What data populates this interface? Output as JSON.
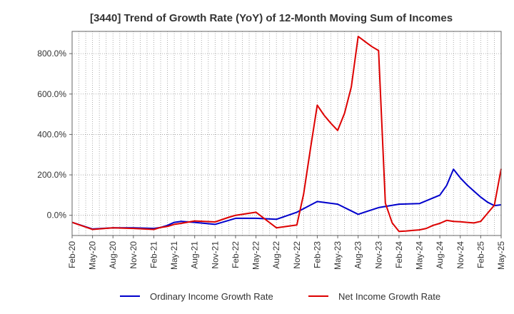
{
  "chart_data": {
    "type": "line",
    "title": "[3440]  Trend of Growth Rate (YoY) of 12-Month Moving Sum of Incomes",
    "xlabel": "",
    "ylabel": "",
    "x_tick_labels": [
      "Feb-20",
      "May-20",
      "Aug-20",
      "Nov-20",
      "Feb-21",
      "May-21",
      "Aug-21",
      "Nov-21",
      "Feb-22",
      "May-22",
      "Aug-22",
      "Nov-22",
      "Feb-23",
      "May-23",
      "Aug-23",
      "Nov-23",
      "Feb-24",
      "May-24",
      "Aug-24",
      "Nov-24",
      "Feb-25",
      "May-25"
    ],
    "y_ticks": [
      0,
      200,
      400,
      600,
      800
    ],
    "y_tick_labels": [
      "0.0%",
      "200.0%",
      "400.0%",
      "600.0%",
      "800.0%"
    ],
    "ylim": [
      -100,
      910
    ],
    "x_range_months": [
      0,
      63
    ],
    "grid": true,
    "legend_position": "bottom",
    "series": [
      {
        "name": "Ordinary Income Growth Rate",
        "color": "#0000cc",
        "x": [
          0,
          3,
          6,
          9,
          12,
          13,
          14,
          15,
          16,
          18,
          21,
          23,
          24,
          27,
          30,
          33,
          36,
          39,
          42,
          45,
          48,
          51,
          54,
          55,
          56,
          57,
          58,
          59,
          60,
          61,
          62,
          63
        ],
        "values": [
          -35,
          -68,
          -62,
          -62,
          -65,
          -60,
          -50,
          -35,
          -30,
          -35,
          -45,
          -25,
          -15,
          -15,
          -20,
          15,
          68,
          55,
          5,
          38,
          55,
          58,
          100,
          148,
          228,
          185,
          150,
          120,
          90,
          65,
          48,
          52
        ]
      },
      {
        "name": "Net Income Growth Rate",
        "color": "#dd0000",
        "x": [
          0,
          3,
          6,
          9,
          12,
          13,
          14,
          15,
          16,
          18,
          21,
          23,
          24,
          27,
          30,
          33,
          34,
          35,
          36,
          37,
          38,
          39,
          40,
          41,
          42,
          43,
          44,
          45,
          46,
          47,
          48,
          49,
          50,
          51,
          52,
          53,
          54,
          55,
          56,
          57,
          58,
          59,
          60,
          61,
          62,
          63
        ],
        "values": [
          -35,
          -70,
          -62,
          -65,
          -70,
          -60,
          -55,
          -45,
          -40,
          -28,
          -33,
          -10,
          0,
          15,
          -62,
          -48,
          105,
          330,
          545,
          495,
          455,
          420,
          505,
          635,
          885,
          860,
          835,
          815,
          60,
          -38,
          -80,
          -78,
          -75,
          -72,
          -65,
          -50,
          -40,
          -25,
          -30,
          -32,
          -35,
          -38,
          -30,
          10,
          50,
          230
        ]
      }
    ]
  }
}
